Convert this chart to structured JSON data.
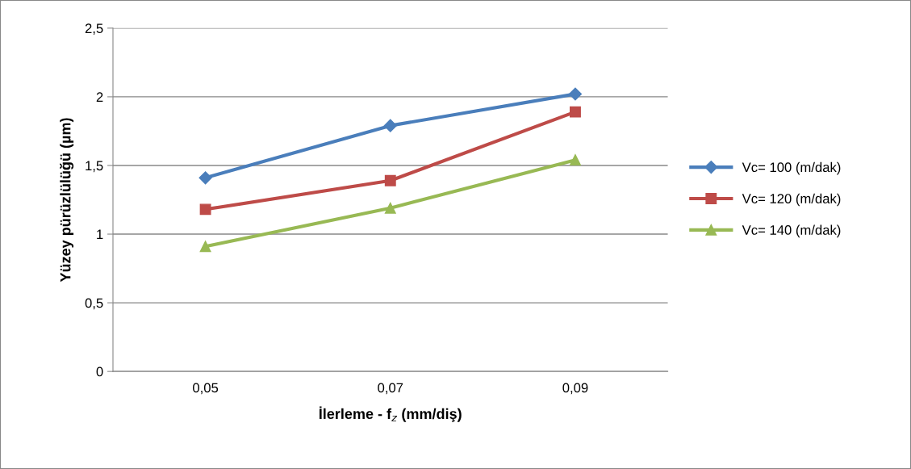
{
  "chart_data": {
    "type": "line",
    "xlabel": "İlerleme - f$_{z}$ (mm/diş)",
    "ylabel": "Yüzey pürüzlülüğü (µm)",
    "categories": [
      "0,05",
      "0,07",
      "0,09"
    ],
    "series": [
      {
        "name": "Vc= 100 (m/dak)",
        "color": "#4a7ebb",
        "marker": "diamond",
        "values": [
          1.41,
          1.79,
          2.02
        ]
      },
      {
        "name": "Vc= 120 (m/dak)",
        "color": "#be4b48",
        "marker": "square",
        "values": [
          1.18,
          1.39,
          1.89
        ]
      },
      {
        "name": "Vc= 140 (m/dak)",
        "color": "#98b954",
        "marker": "triangle",
        "values": [
          0.91,
          1.19,
          1.54
        ]
      }
    ],
    "ylim": [
      0,
      2.5
    ],
    "yticks": [
      0,
      {
        "value": 0.5,
        "label": "0,5"
      },
      1,
      {
        "value": 1.5,
        "label": "1,5"
      },
      2,
      {
        "value": 2.5,
        "label": "2,5"
      }
    ],
    "grid": "y",
    "legend": "right",
    "line_style": "solid"
  }
}
